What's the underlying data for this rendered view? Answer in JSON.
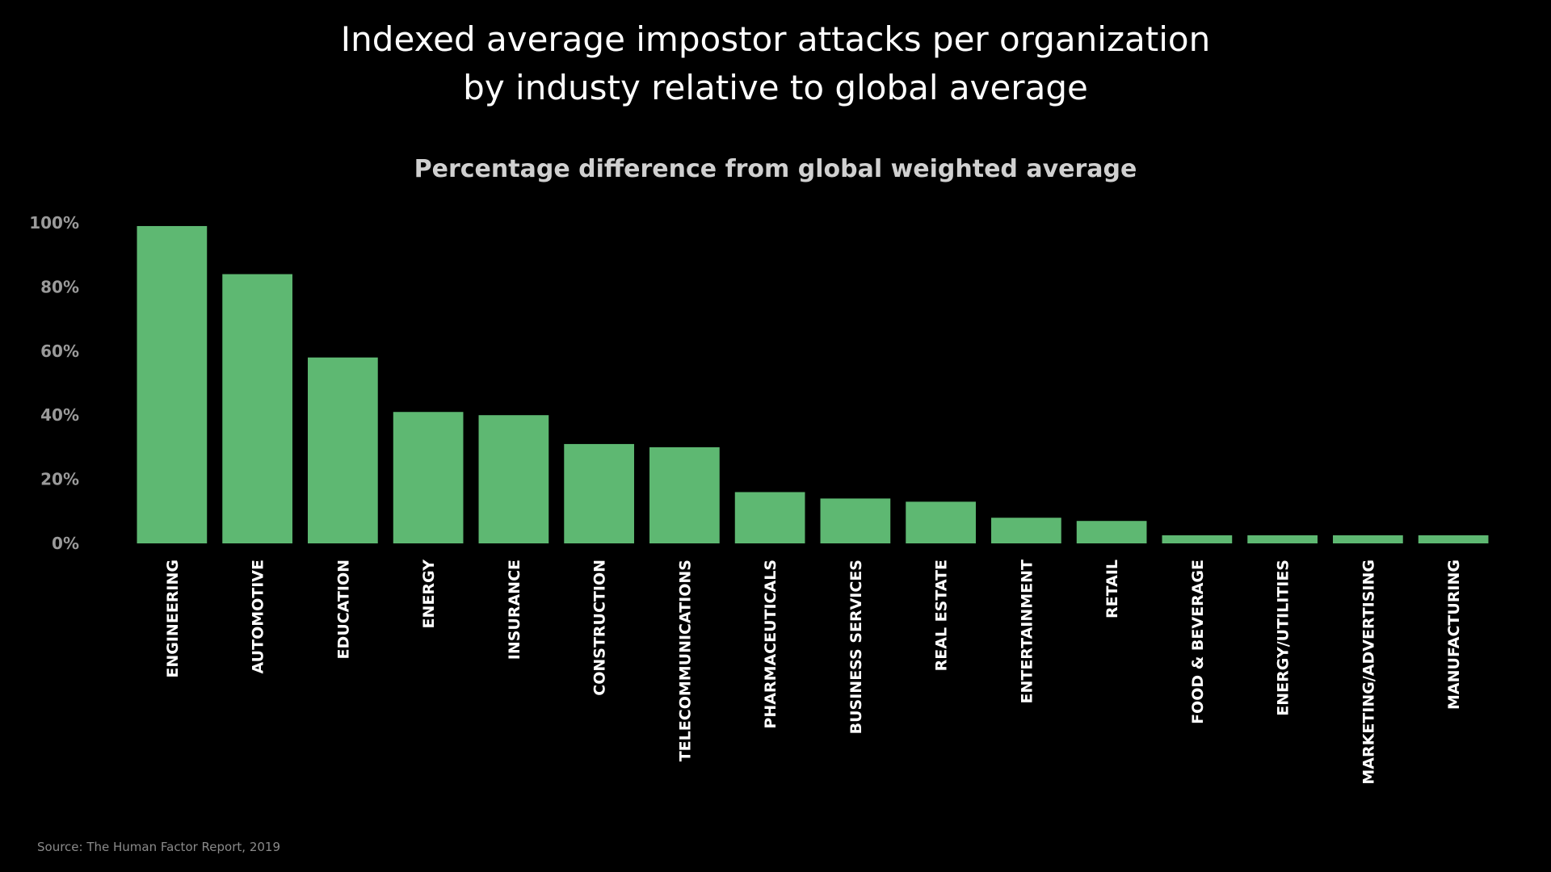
{
  "header": {
    "title_line_1": "Indexed average impostor attacks per organization",
    "title_line_2": "by industy relative to global average"
  },
  "footer": {
    "source": "Source: The Human Factor Report, 2019"
  },
  "colors": {
    "background": "#000000",
    "bar": "#5eb872",
    "title": "#ffffff",
    "subtitle": "#d0d0d0",
    "ytick": "#9a9a9a",
    "xtick": "#ffffff",
    "source": "#8a8a8a"
  },
  "chart_data": {
    "type": "bar",
    "title": "Percentage difference from global weighted average",
    "xlabel": "",
    "ylabel": "",
    "ylim": [
      0,
      100
    ],
    "yticks": [
      0,
      20,
      40,
      60,
      80,
      100
    ],
    "ytick_labels": [
      "0%",
      "20%",
      "40%",
      "60%",
      "80%",
      "100%"
    ],
    "grid": false,
    "legend": "none",
    "categories": [
      "ENGINEERING",
      "AUTOMOTIVE",
      "EDUCATION",
      "ENERGY",
      "INSURANCE",
      "CONSTRUCTION",
      "TELECOMMUNICATIONS",
      "PHARMACEUTICALS",
      "BUSINESS SERVICES",
      "REAL ESTATE",
      "ENTERTAINMENT",
      "RETAIL",
      "FOOD & BEVERAGE",
      "ENERGY/UTILITIES",
      "MARKETING/ADVERTISING",
      "MANUFACTURING"
    ],
    "values": [
      99,
      84,
      58,
      41,
      40,
      31,
      30,
      16,
      14,
      13,
      8,
      7,
      2.5,
      1,
      1.5,
      0
    ]
  }
}
